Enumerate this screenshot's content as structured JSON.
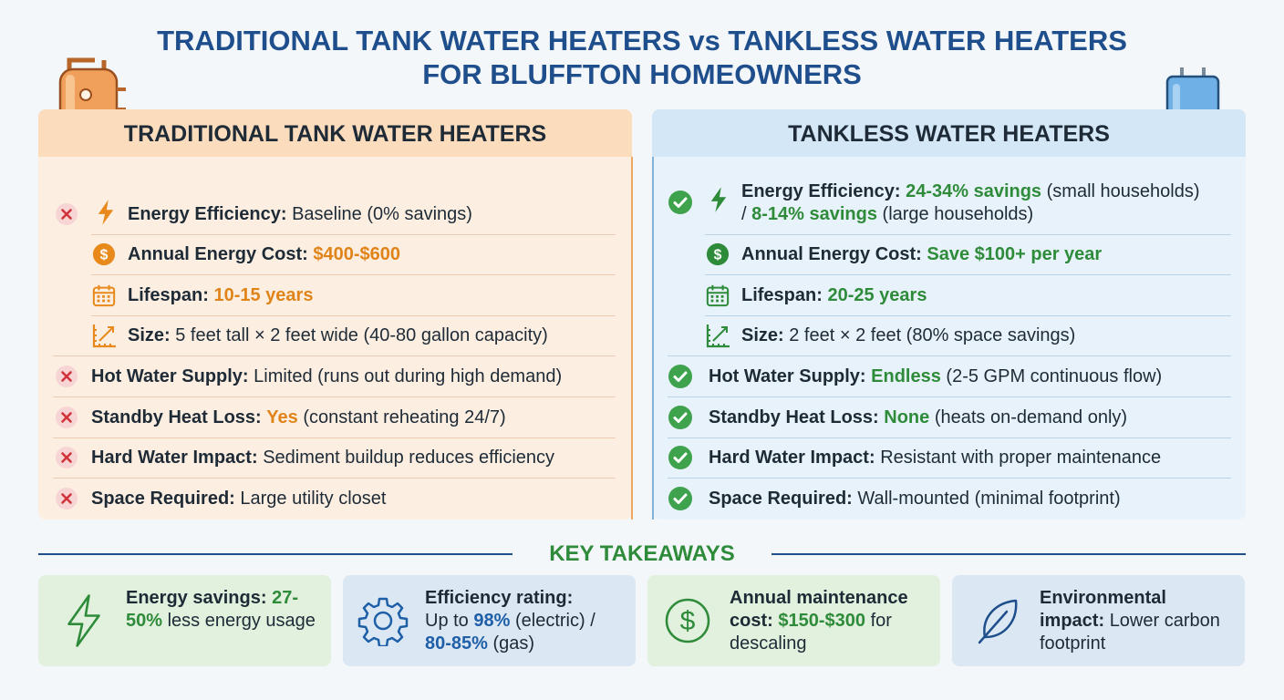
{
  "title_lines": [
    "TRADITIONAL TANK WATER HEATERS vs TANKLESS WATER HEATERS",
    "FOR BLUFFTON HOMEOWNERS"
  ],
  "panels": [
    {
      "heading": "TRADITIONAL TANK WATER HEATERS",
      "rows": [
        {
          "label": "Energy Efficiency:",
          "parts": [
            "Baseline (0% savings)"
          ]
        },
        {
          "label": "Annual Energy Cost:",
          "parts": [
            "$400-$600"
          ]
        },
        {
          "label": "Lifespan:",
          "parts": [
            "10-15 years"
          ]
        },
        {
          "label": "Size:",
          "parts": [
            "5 feet tall × 2 feet wide (40-80 gallon capacity)"
          ]
        },
        {
          "label": "Hot Water Supply:",
          "parts": [
            "Limited (runs out during high demand)"
          ]
        },
        {
          "label": "Standby Heat Loss:",
          "parts": [
            "Yes",
            "(constant reheating 24/7)"
          ]
        },
        {
          "label": "Hard Water Impact:",
          "parts": [
            "Sediment buildup reduces efficiency"
          ]
        },
        {
          "label": "Space Required:",
          "parts": [
            "Large utility closet"
          ]
        }
      ]
    },
    {
      "heading": "TANKLESS WATER HEATERS",
      "rows": [
        {
          "label": "Energy Efficiency:",
          "parts": [
            "24-34% savings",
            "(small households)",
            "/",
            "8-14% savings",
            "(large households)"
          ]
        },
        {
          "label": "Annual Energy Cost:",
          "parts": [
            "Save $100+ per year"
          ]
        },
        {
          "label": "Lifespan:",
          "parts": [
            "20-25 years"
          ]
        },
        {
          "label": "Size:",
          "parts": [
            "2 feet × 2 feet (80% space savings)"
          ]
        },
        {
          "label": "Hot Water Supply:",
          "parts": [
            "Endless",
            "(2-5 GPM continuous flow)"
          ]
        },
        {
          "label": "Standby Heat Loss:",
          "parts": [
            "None",
            "(heats on-demand only)"
          ]
        },
        {
          "label": "Hard Water Impact:",
          "parts": [
            "Resistant with proper maintenance"
          ]
        },
        {
          "label": "Space Required:",
          "parts": [
            "Wall-mounted (minimal footprint)"
          ]
        }
      ]
    }
  ],
  "takeaways": {
    "heading": "KEY TAKEAWAYS",
    "cards": [
      {
        "label": "Energy savings:",
        "parts": [
          "27-50%",
          "less energy usage"
        ]
      },
      {
        "label": "Efficiency rating:",
        "parts": [
          "Up to",
          "98%",
          "(electric) /",
          "80-85%",
          "(gas)"
        ]
      },
      {
        "label": "Annual maintenance cost:",
        "parts": [
          "$150-$300",
          "for descaling"
        ]
      },
      {
        "label": "Environmental impact:",
        "parts": [
          "Lower carbon footprint"
        ]
      }
    ]
  }
}
